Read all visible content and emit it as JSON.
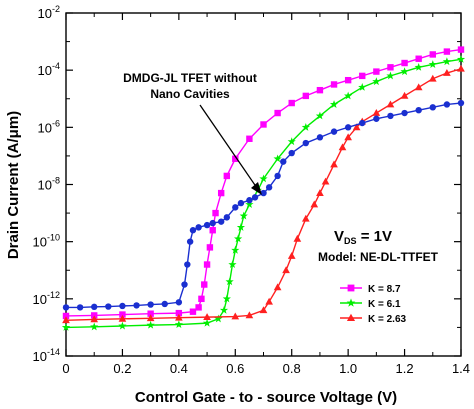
{
  "chart_data": {
    "type": "line",
    "xlabel": "Control Gate - to - source Voltage (V)",
    "ylabel": "Drain Current (A/μm)",
    "xlim": [
      0,
      1.4
    ],
    "ylim_log10": [
      -14,
      -2
    ],
    "y_scale": "log",
    "x_ticks": [
      "0",
      "0.2",
      "0.4",
      "0.6",
      "0.8",
      "1.0",
      "1.2",
      "1.4"
    ],
    "y_ticks": [
      {
        "base": "10",
        "exp": "-14"
      },
      {
        "base": "10",
        "exp": "-12"
      },
      {
        "base": "10",
        "exp": "-10"
      },
      {
        "base": "10",
        "exp": "-8"
      },
      {
        "base": "10",
        "exp": "-6"
      },
      {
        "base": "10",
        "exp": "-4"
      },
      {
        "base": "10",
        "exp": "-2"
      }
    ],
    "legend_placement": "bottom-right",
    "annotations": {
      "arrow_label_line1": "DMDG-JL TFET without",
      "arrow_label_line2": "Nano Cavities",
      "vds_main": "V",
      "vds_sub": "DS",
      "vds_rest": " = 1V",
      "model": "Model: NE-DL-TTFET"
    },
    "series": [
      {
        "name": "K = 8.7",
        "color": "#ff00ff",
        "marker": "square",
        "x": [
          0.0,
          0.1,
          0.2,
          0.3,
          0.4,
          0.45,
          0.47,
          0.48,
          0.49,
          0.5,
          0.51,
          0.52,
          0.53,
          0.55,
          0.57,
          0.6,
          0.65,
          0.7,
          0.75,
          0.8,
          0.85,
          0.9,
          0.95,
          1.0,
          1.05,
          1.1,
          1.15,
          1.2,
          1.25,
          1.3,
          1.35,
          1.4
        ],
        "y_log10": [
          -12.6,
          -12.58,
          -12.55,
          -12.52,
          -12.5,
          -12.45,
          -12.3,
          -12.0,
          -11.5,
          -10.8,
          -10.2,
          -9.6,
          -9.0,
          -8.3,
          -7.7,
          -7.1,
          -6.4,
          -5.9,
          -5.5,
          -5.15,
          -4.9,
          -4.7,
          -4.5,
          -4.35,
          -4.2,
          -4.05,
          -3.9,
          -3.75,
          -3.6,
          -3.45,
          -3.35,
          -3.28
        ]
      },
      {
        "name": "K = 6.1",
        "color": "#00ee00",
        "marker": "star",
        "x": [
          0.0,
          0.1,
          0.2,
          0.3,
          0.4,
          0.5,
          0.54,
          0.56,
          0.57,
          0.58,
          0.59,
          0.6,
          0.61,
          0.62,
          0.63,
          0.65,
          0.68,
          0.7,
          0.75,
          0.8,
          0.85,
          0.9,
          0.95,
          1.0,
          1.05,
          1.1,
          1.15,
          1.2,
          1.25,
          1.3,
          1.35,
          1.4
        ],
        "y_log10": [
          -13.0,
          -12.98,
          -12.95,
          -12.92,
          -12.9,
          -12.85,
          -12.7,
          -12.4,
          -12.0,
          -11.4,
          -10.8,
          -10.3,
          -9.9,
          -9.5,
          -9.1,
          -8.7,
          -8.2,
          -7.8,
          -7.1,
          -6.5,
          -6.0,
          -5.6,
          -5.2,
          -4.9,
          -4.6,
          -4.4,
          -4.2,
          -4.05,
          -3.9,
          -3.8,
          -3.7,
          -3.62
        ]
      },
      {
        "name": "K = 2.63",
        "color": "#ff2020",
        "marker": "triangle",
        "x": [
          0.0,
          0.1,
          0.2,
          0.3,
          0.4,
          0.5,
          0.6,
          0.65,
          0.7,
          0.72,
          0.75,
          0.78,
          0.8,
          0.82,
          0.85,
          0.88,
          0.9,
          0.92,
          0.95,
          0.98,
          1.0,
          1.03,
          1.05,
          1.1,
          1.15,
          1.2,
          1.25,
          1.3,
          1.35,
          1.4
        ],
        "y_log10": [
          -12.75,
          -12.72,
          -12.7,
          -12.68,
          -12.66,
          -12.64,
          -12.62,
          -12.58,
          -12.4,
          -12.1,
          -11.6,
          -11.0,
          -10.5,
          -9.9,
          -9.2,
          -8.7,
          -8.3,
          -7.9,
          -7.3,
          -6.7,
          -6.35,
          -6.0,
          -5.8,
          -5.5,
          -5.2,
          -4.9,
          -4.6,
          -4.3,
          -4.1,
          -3.95
        ]
      },
      {
        "name": "DMDG-JL TFET without Nano Cavities",
        "color": "#1a2fd0",
        "marker": "circle",
        "x": [
          0.0,
          0.05,
          0.1,
          0.15,
          0.2,
          0.25,
          0.3,
          0.35,
          0.4,
          0.42,
          0.43,
          0.44,
          0.45,
          0.47,
          0.5,
          0.52,
          0.55,
          0.57,
          0.6,
          0.62,
          0.65,
          0.67,
          0.7,
          0.72,
          0.75,
          0.77,
          0.8,
          0.85,
          0.9,
          0.95,
          1.0,
          1.05,
          1.1,
          1.15,
          1.2,
          1.25,
          1.3,
          1.35,
          1.4
        ],
        "y_log10": [
          -12.3,
          -12.3,
          -12.28,
          -12.27,
          -12.25,
          -12.23,
          -12.2,
          -12.18,
          -12.12,
          -11.5,
          -10.8,
          -10.0,
          -9.6,
          -9.5,
          -9.42,
          -9.35,
          -9.3,
          -9.15,
          -8.8,
          -8.65,
          -8.55,
          -8.45,
          -8.3,
          -8.1,
          -7.7,
          -7.2,
          -6.9,
          -6.55,
          -6.35,
          -6.15,
          -6.0,
          -5.85,
          -5.7,
          -5.6,
          -5.5,
          -5.4,
          -5.3,
          -5.2,
          -5.15
        ]
      }
    ]
  }
}
